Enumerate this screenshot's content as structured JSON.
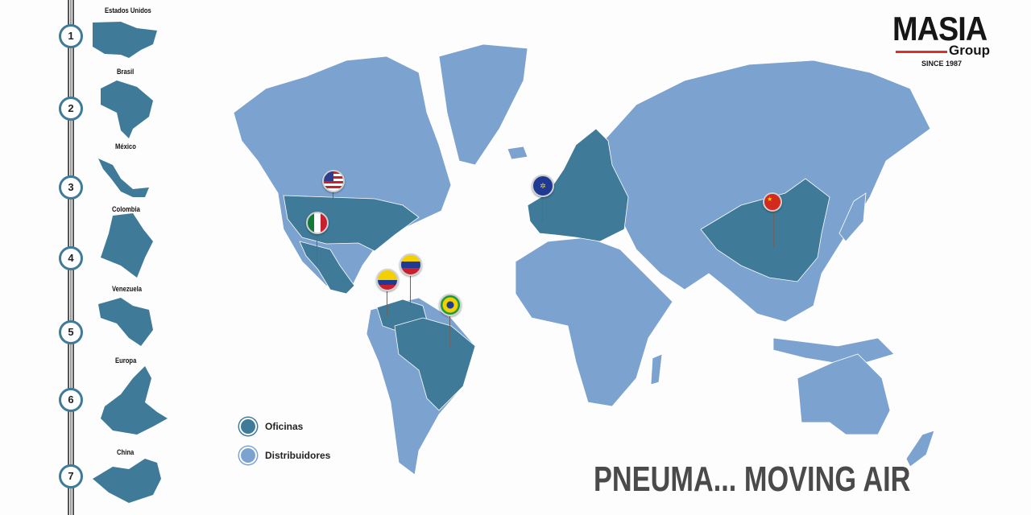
{
  "sidebar": {
    "items": [
      {
        "num": "1",
        "label": "Estados Unidos"
      },
      {
        "num": "2",
        "label": "Brasil"
      },
      {
        "num": "3",
        "label": "México"
      },
      {
        "num": "4",
        "label": "Colombia"
      },
      {
        "num": "5",
        "label": "Venezuela"
      },
      {
        "num": "6",
        "label": "Europa"
      },
      {
        "num": "7",
        "label": "China"
      }
    ]
  },
  "logo": {
    "name": "MASIA",
    "sub": "Group",
    "since": "SINCE 1987"
  },
  "legend": {
    "offices": {
      "label": "Oficinas",
      "color": "#3f7a99"
    },
    "distributors": {
      "label": "Distribuidores",
      "color": "#7ca3cf"
    }
  },
  "slogan": "PNEUMA... MOVING AIR",
  "pins": [
    "usa-flag-icon",
    "eu-flag-icon",
    "mexico-flag-icon",
    "venezuela-flag-icon",
    "colombia-flag-icon",
    "brazil-flag-icon",
    "china-flag-icon"
  ]
}
